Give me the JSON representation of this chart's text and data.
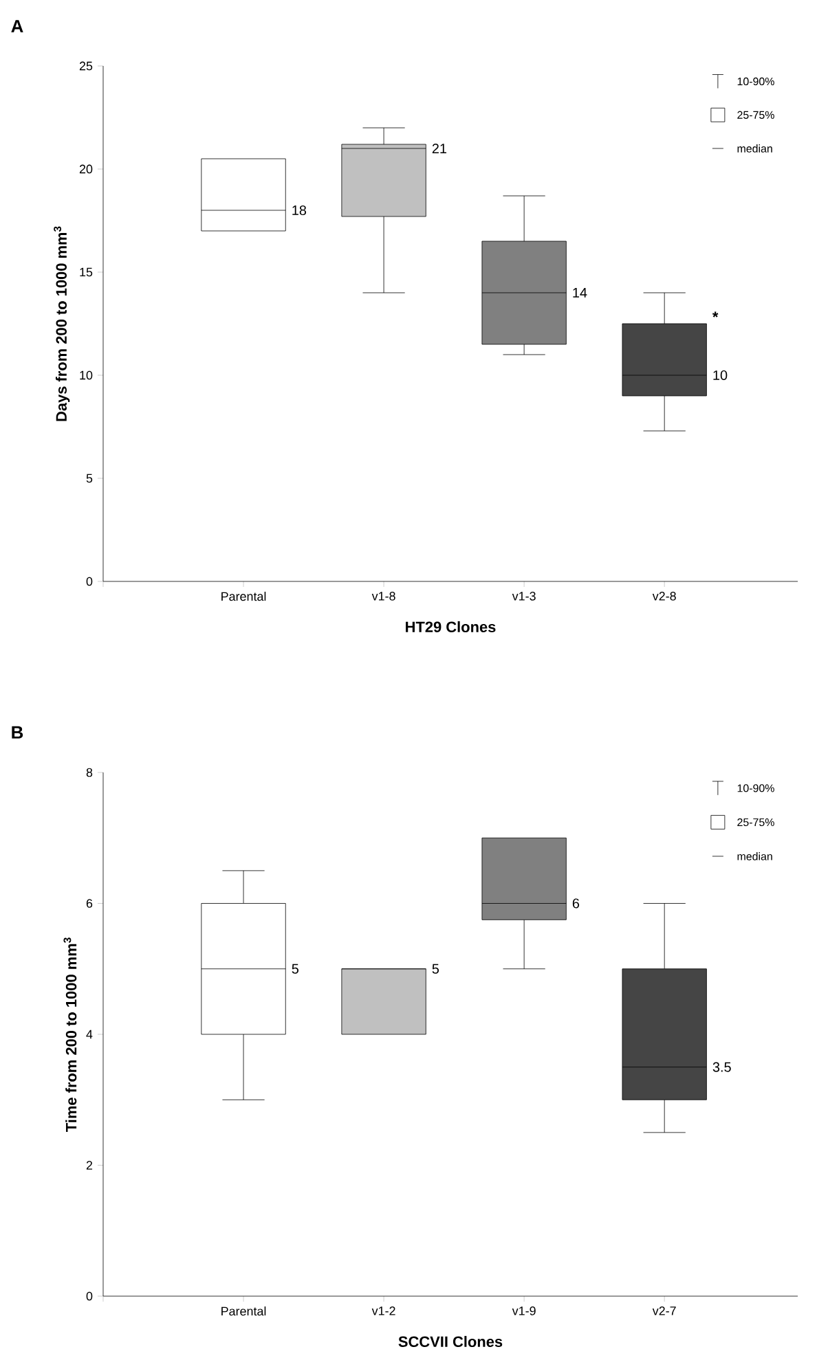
{
  "chart_data": [
    {
      "type": "box",
      "title": "**A**",
      "xlabel": "HT29 Clones",
      "ylabel": "Days from 200 to 1000 mm$^{3}$",
      "categories": [
        "Parental",
        "v1-8",
        "v1-3",
        "v2-8"
      ],
      "colors": [
        "#ffffff",
        "#c0c0c0",
        "#808080",
        "#454545"
      ],
      "boxes": [
        {
          "low": 17,
          "q1": 17,
          "median": 18,
          "q3": 20.5,
          "high": 20.5
        },
        {
          "low": 14,
          "q1": 17.7,
          "median": 21,
          "q3": 21.2,
          "high": 22
        },
        {
          "low": 11,
          "q1": 11.5,
          "median": 14,
          "q3": 16.5,
          "high": 18.7
        },
        {
          "low": 7.3,
          "q1": 9,
          "median": 10,
          "q3": 12.5,
          "high": 14
        }
      ],
      "ylim": [
        0,
        25
      ],
      "yticks": [
        0,
        5,
        10,
        15,
        20,
        25
      ],
      "annotations": [
        "18",
        "21",
        "14",
        "10",
        "*",
        "10-90%",
        "25-75%",
        "median"
      ]
    },
    {
      "type": "box",
      "title": "**B**",
      "xlabel": "SCCVII Clones",
      "ylabel": "Time from 200 to 1000 mm$^{3}$",
      "categories": [
        "Parental",
        "v1-2",
        "v1-9",
        "v2-7"
      ],
      "colors": [
        "#ffffff",
        "#c0c0c0",
        "#808080",
        "#454545"
      ],
      "boxes": [
        {
          "low": 3,
          "q1": 4,
          "median": 5,
          "q3": 6,
          "high": 6.5
        },
        {
          "low": 4,
          "q1": 4,
          "median": 5,
          "q3": 5,
          "high": 5
        },
        {
          "low": 5,
          "q1": 5.75,
          "median": 6,
          "q3": 7,
          "high": 7
        },
        {
          "low": 2.5,
          "q1": 3,
          "median": 3.5,
          "q3": 5,
          "high": 6
        }
      ],
      "ylim": [
        0,
        8
      ],
      "yticks": [
        0,
        2,
        4,
        6,
        8
      ],
      "annotations": [
        "5",
        "5",
        "6",
        "3.5",
        "10-90%",
        "25-75%",
        "median"
      ]
    }
  ]
}
